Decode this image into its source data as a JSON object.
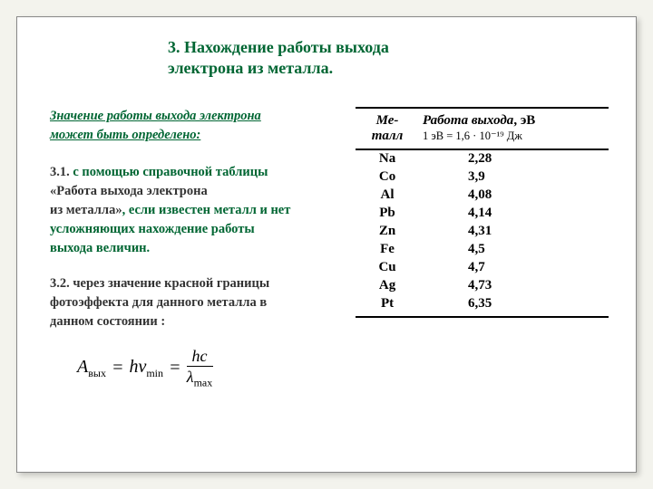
{
  "title_l1": "3. Нахождение работы выхода",
  "title_l2": "электрона из металла.",
  "intro_l1": "Значение работы выхода электрона",
  "intro_l2": "может быть определено:",
  "p31_num": "3.1.",
  "p31_a": " с помощью справочной таблицы",
  "p31_b": " «Работа выхода электрона",
  "p31_c": "из металла»",
  "p31_d": ", если известен металл и нет",
  "p31_e": "усложняющих нахождение работы",
  "p31_f": "выхода величин.",
  "p32_num": "3.2.",
  "p32_a": " через значение красной границы",
  "p32_b": "фотоэффекта для данного металла в",
  "p32_c": "данном состоянии :",
  "th_metal_l1": "Ме-",
  "th_metal_l2": "талл",
  "th_work_l1": "Работа выхода",
  "th_work_unit": ", эВ",
  "th_work_l2": "1 эВ = 1,6 · 10⁻¹⁹ Дж",
  "rows": [
    {
      "m": "Na",
      "v": "2,28"
    },
    {
      "m": "Co",
      "v": "3,9"
    },
    {
      "m": "Al",
      "v": "4,08"
    },
    {
      "m": "Pb",
      "v": "4,14"
    },
    {
      "m": "Zn",
      "v": "4,31"
    },
    {
      "m": "Fe",
      "v": "4,5"
    },
    {
      "m": "Cu",
      "v": "4,7"
    },
    {
      "m": "Ag",
      "v": "4,73"
    },
    {
      "m": "Pt",
      "v": "6,35"
    }
  ],
  "f_A": "A",
  "f_Asub": "вых",
  "f_eq1": " = ",
  "f_h": "h",
  "f_nu": "ν",
  "f_nusub": "min",
  "f_eq2": " = ",
  "f_num": "hc",
  "f_den_l": "λ",
  "f_den_s": "max"
}
